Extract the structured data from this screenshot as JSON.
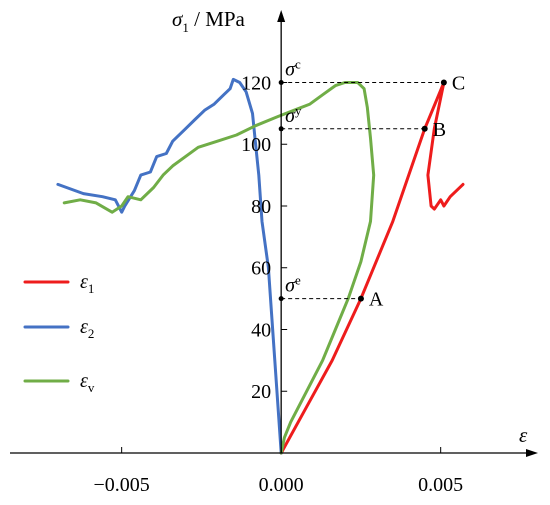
{
  "chart_data": {
    "type": "line",
    "xlim": [
      -0.0085,
      0.0078
    ],
    "ylim": [
      0,
      137
    ],
    "x_ticks": [
      -0.005,
      0.0,
      0.005
    ],
    "x_tick_labels": [
      "−0.005",
      "0.000",
      "0.005"
    ],
    "y_ticks": [
      20,
      40,
      60,
      80,
      100,
      120
    ],
    "y_tick_labels": [
      "20",
      "40",
      "60",
      "80",
      "100",
      "120"
    ],
    "xlabel": "ε",
    "ylabel": "σ₁ / MPa",
    "ylabel_parts": {
      "symbol": "σ",
      "sub": "1",
      "rest": " / MPa"
    },
    "grid": false,
    "legend_position": "left",
    "colors": {
      "e1": "#ee1c1c",
      "e2": "#4472c4",
      "ev": "#70ad47"
    },
    "series": [
      {
        "id": "e1",
        "name": "ε1",
        "name_parts": {
          "symbol": "ε",
          "sub": "1"
        },
        "color": "#ee1c1c",
        "points": [
          [
            0.0,
            0
          ],
          [
            0.0008,
            15
          ],
          [
            0.0016,
            30
          ],
          [
            0.0025,
            50
          ],
          [
            0.0035,
            75
          ],
          [
            0.0045,
            105
          ],
          [
            0.0051,
            120
          ],
          [
            0.0048,
            105
          ],
          [
            0.0046,
            90
          ],
          [
            0.0047,
            80
          ],
          [
            0.0048,
            79
          ],
          [
            0.005,
            82
          ],
          [
            0.0051,
            80
          ],
          [
            0.0053,
            83
          ],
          [
            0.0055,
            85
          ],
          [
            0.0057,
            87
          ]
        ]
      },
      {
        "id": "e2",
        "name": "ε2",
        "name_parts": {
          "symbol": "ε",
          "sub": "2"
        },
        "color": "#4472c4",
        "points": [
          [
            0.0,
            0
          ],
          [
            -0.0001,
            15
          ],
          [
            -0.0002,
            30
          ],
          [
            -0.0003,
            45
          ],
          [
            -0.0004,
            60
          ],
          [
            -0.0006,
            75
          ],
          [
            -0.0007,
            90
          ],
          [
            -0.0008,
            100
          ],
          [
            -0.0009,
            110
          ],
          [
            -0.0011,
            117
          ],
          [
            -0.0013,
            120
          ],
          [
            -0.0015,
            121
          ],
          [
            -0.0016,
            118
          ],
          [
            -0.0018,
            116
          ],
          [
            -0.0021,
            113
          ],
          [
            -0.0024,
            111
          ],
          [
            -0.0027,
            108
          ],
          [
            -0.003,
            105
          ],
          [
            -0.0034,
            101
          ],
          [
            -0.0036,
            97
          ],
          [
            -0.0039,
            96
          ],
          [
            -0.0041,
            91
          ],
          [
            -0.0044,
            90
          ],
          [
            -0.0046,
            85
          ],
          [
            -0.0049,
            80
          ],
          [
            -0.005,
            78
          ],
          [
            -0.0052,
            82
          ],
          [
            -0.0056,
            83
          ],
          [
            -0.0062,
            84
          ],
          [
            -0.007,
            87
          ]
        ]
      },
      {
        "id": "ev",
        "name": "εv",
        "name_parts": {
          "symbol": "ε",
          "sub": "v"
        },
        "color": "#70ad47",
        "points": [
          [
            0.0,
            0
          ],
          [
            0.0001,
            5
          ],
          [
            0.0003,
            10
          ],
          [
            0.0008,
            20
          ],
          [
            0.0013,
            30
          ],
          [
            0.0017,
            40
          ],
          [
            0.0021,
            50
          ],
          [
            0.0025,
            62
          ],
          [
            0.0028,
            75
          ],
          [
            0.0029,
            90
          ],
          [
            0.0028,
            102
          ],
          [
            0.0027,
            112
          ],
          [
            0.0026,
            118
          ],
          [
            0.0024,
            120
          ],
          [
            0.002,
            120
          ],
          [
            0.0017,
            119
          ],
          [
            0.0013,
            116
          ],
          [
            0.0009,
            113
          ],
          [
            0.0004,
            111
          ],
          [
            -0.0001,
            109
          ],
          [
            -0.0008,
            106
          ],
          [
            -0.0014,
            103
          ],
          [
            -0.002,
            101
          ],
          [
            -0.0026,
            99
          ],
          [
            -0.003,
            96
          ],
          [
            -0.0034,
            93
          ],
          [
            -0.0037,
            90
          ],
          [
            -0.004,
            86
          ],
          [
            -0.0044,
            82
          ],
          [
            -0.0048,
            83
          ],
          [
            -0.005,
            80
          ],
          [
            -0.0053,
            78
          ],
          [
            -0.0058,
            81
          ],
          [
            -0.0063,
            82
          ],
          [
            -0.0068,
            81
          ]
        ]
      }
    ],
    "annotations": [
      {
        "id": "A",
        "label": "A",
        "x": 0.0025,
        "y": 50,
        "sigma_sub": "e"
      },
      {
        "id": "B",
        "label": "B",
        "x": 0.0045,
        "y": 105,
        "sigma_sub": "y"
      },
      {
        "id": "C",
        "label": "C",
        "x": 0.0051,
        "y": 120,
        "sigma_sub": "c"
      }
    ],
    "sigma_symbol": "σ"
  }
}
